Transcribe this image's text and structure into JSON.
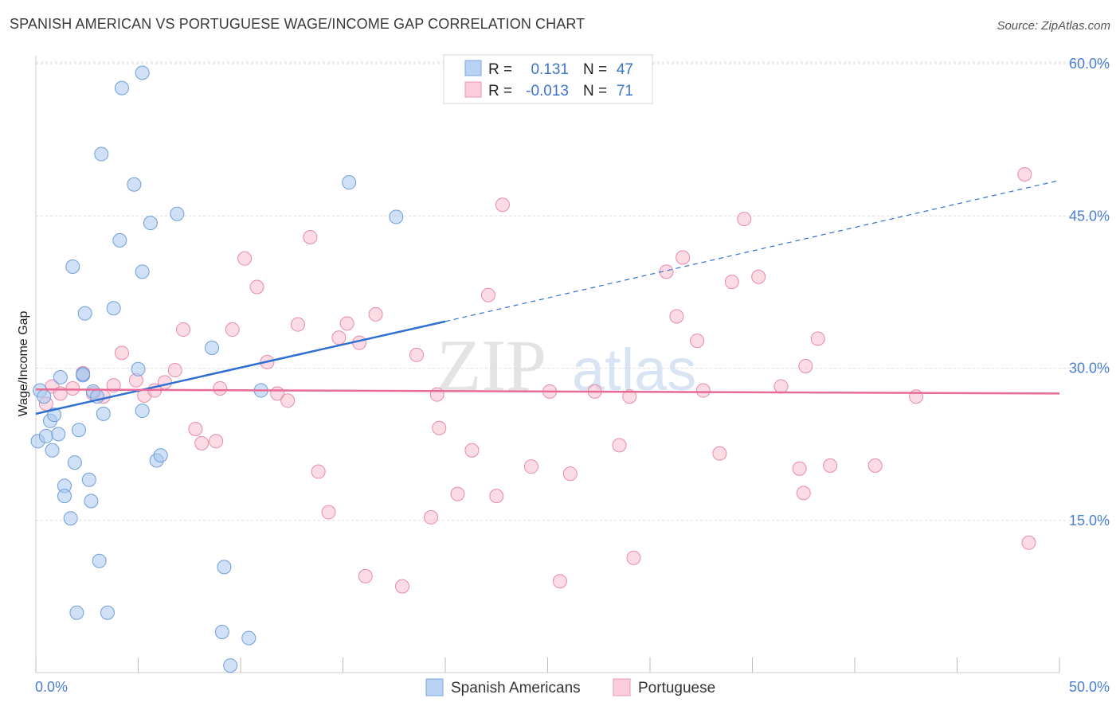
{
  "title": "SPANISH AMERICAN VS PORTUGUESE WAGE/INCOME GAP CORRELATION CHART",
  "source": "Source: ZipAtlas.com",
  "watermark": {
    "zip": "ZIP",
    "atlas": "atlas"
  },
  "colors": {
    "blue_fill": "#a9c8f0",
    "blue_stroke": "#6f9fd8",
    "blue_line": "#2e6fd0",
    "pink_fill": "#f8bfd0",
    "pink_stroke": "#e88aa8",
    "pink_line": "#e86a96",
    "tick_color": "#4a7fd0",
    "grid": "#dddddd"
  },
  "legend": {
    "rows": [
      {
        "r_label": "R =",
        "r_value": "0.131",
        "n_label": "N =",
        "n_value": "47",
        "series": "blue"
      },
      {
        "r_label": "R =",
        "r_value": "-0.013",
        "n_label": "N =",
        "n_value": "71",
        "series": "pink"
      }
    ]
  },
  "bottom_legend": [
    {
      "label": "Spanish Americans",
      "series": "blue"
    },
    {
      "label": "Portuguese",
      "series": "pink"
    }
  ],
  "chart_data": {
    "type": "scatter",
    "title": "SPANISH AMERICAN VS PORTUGUESE WAGE/INCOME GAP CORRELATION CHART",
    "xlabel": "",
    "ylabel": "Wage/Income Gap",
    "xlim": [
      0,
      50
    ],
    "ylim": [
      0,
      60
    ],
    "x_tick_labels": [
      "0.0%",
      "50.0%"
    ],
    "y_ticks": [
      15,
      30,
      45,
      60
    ],
    "y_tick_labels": [
      "15.0%",
      "30.0%",
      "45.0%",
      "60.0%"
    ],
    "series": [
      {
        "name": "Spanish Americans",
        "color": "blue",
        "trend": {
          "x0": 0.0,
          "y0": 25.5,
          "x1": 20.0,
          "y1": 34.6,
          "dashed_to_x": 50.0,
          "dashed_to_y": 48.5
        },
        "points": [
          [
            0.1,
            22.8
          ],
          [
            0.2,
            27.8
          ],
          [
            0.4,
            27.2
          ],
          [
            0.5,
            23.3
          ],
          [
            0.7,
            24.8
          ],
          [
            0.8,
            21.9
          ],
          [
            0.9,
            25.4
          ],
          [
            1.1,
            23.5
          ],
          [
            1.2,
            29.1
          ],
          [
            1.4,
            18.4
          ],
          [
            1.4,
            17.4
          ],
          [
            1.7,
            15.2
          ],
          [
            1.8,
            40.0
          ],
          [
            1.9,
            20.7
          ],
          [
            2.0,
            5.9
          ],
          [
            2.1,
            23.9
          ],
          [
            2.3,
            29.3
          ],
          [
            2.4,
            35.4
          ],
          [
            2.6,
            19.0
          ],
          [
            2.7,
            16.9
          ],
          [
            2.8,
            27.7
          ],
          [
            3.0,
            27.2
          ],
          [
            3.1,
            11.0
          ],
          [
            3.2,
            51.1
          ],
          [
            3.3,
            25.5
          ],
          [
            3.5,
            5.9
          ],
          [
            3.8,
            35.9
          ],
          [
            4.1,
            42.6
          ],
          [
            4.2,
            57.6
          ],
          [
            4.8,
            48.1
          ],
          [
            5.0,
            29.9
          ],
          [
            5.2,
            39.5
          ],
          [
            5.2,
            25.8
          ],
          [
            5.6,
            44.3
          ],
          [
            5.9,
            20.9
          ],
          [
            6.1,
            21.4
          ],
          [
            6.9,
            45.2
          ],
          [
            8.6,
            32.0
          ],
          [
            9.1,
            4.0
          ],
          [
            9.2,
            10.4
          ],
          [
            9.5,
            0.7
          ],
          [
            10.4,
            3.4
          ],
          [
            11.0,
            27.8
          ],
          [
            15.3,
            48.3
          ],
          [
            17.6,
            44.9
          ],
          [
            5.2,
            59.1
          ],
          [
            2.3,
            29.4
          ]
        ]
      },
      {
        "name": "Portuguese",
        "color": "pink",
        "trend": {
          "x0": 0.0,
          "y0": 27.9,
          "x1": 50.0,
          "y1": 27.5
        },
        "points": [
          [
            0.5,
            26.5
          ],
          [
            0.8,
            28.2
          ],
          [
            1.2,
            27.5
          ],
          [
            1.8,
            28.0
          ],
          [
            2.3,
            29.5
          ],
          [
            2.8,
            27.5
          ],
          [
            3.3,
            27.2
          ],
          [
            3.8,
            28.3
          ],
          [
            4.2,
            31.5
          ],
          [
            4.9,
            28.8
          ],
          [
            5.3,
            27.3
          ],
          [
            5.8,
            27.8
          ],
          [
            6.3,
            28.6
          ],
          [
            6.8,
            29.8
          ],
          [
            7.2,
            33.8
          ],
          [
            7.8,
            24.0
          ],
          [
            8.1,
            22.6
          ],
          [
            8.8,
            22.8
          ],
          [
            9.0,
            28.0
          ],
          [
            9.6,
            33.8
          ],
          [
            10.2,
            40.8
          ],
          [
            10.8,
            38.0
          ],
          [
            11.3,
            30.6
          ],
          [
            11.8,
            27.5
          ],
          [
            12.3,
            26.8
          ],
          [
            12.8,
            34.3
          ],
          [
            13.4,
            42.9
          ],
          [
            13.8,
            19.8
          ],
          [
            14.3,
            15.8
          ],
          [
            14.8,
            33.0
          ],
          [
            15.2,
            34.4
          ],
          [
            15.8,
            32.5
          ],
          [
            16.1,
            9.5
          ],
          [
            16.6,
            35.3
          ],
          [
            17.9,
            8.5
          ],
          [
            18.6,
            31.3
          ],
          [
            19.3,
            15.3
          ],
          [
            19.6,
            27.4
          ],
          [
            19.7,
            24.1
          ],
          [
            20.6,
            17.6
          ],
          [
            21.3,
            21.9
          ],
          [
            22.1,
            37.2
          ],
          [
            22.5,
            17.4
          ],
          [
            22.8,
            46.1
          ],
          [
            24.2,
            20.3
          ],
          [
            25.1,
            27.7
          ],
          [
            25.6,
            9.0
          ],
          [
            26.1,
            19.6
          ],
          [
            27.3,
            27.7
          ],
          [
            28.5,
            22.4
          ],
          [
            29.0,
            27.2
          ],
          [
            29.2,
            11.3
          ],
          [
            30.8,
            39.5
          ],
          [
            31.3,
            35.1
          ],
          [
            31.6,
            40.9
          ],
          [
            32.3,
            32.7
          ],
          [
            32.6,
            27.8
          ],
          [
            33.4,
            21.6
          ],
          [
            34.0,
            38.5
          ],
          [
            34.6,
            44.7
          ],
          [
            35.3,
            39.0
          ],
          [
            36.4,
            28.2
          ],
          [
            37.3,
            20.1
          ],
          [
            37.5,
            17.7
          ],
          [
            37.6,
            30.2
          ],
          [
            38.2,
            32.9
          ],
          [
            38.8,
            20.4
          ],
          [
            41.0,
            20.4
          ],
          [
            43.0,
            27.2
          ],
          [
            48.3,
            49.1
          ],
          [
            48.5,
            12.8
          ]
        ]
      }
    ]
  }
}
